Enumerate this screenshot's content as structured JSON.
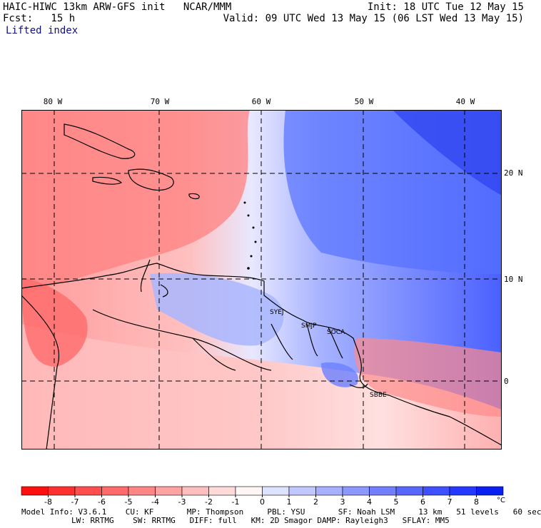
{
  "header": {
    "title": "HAIC-HIWC 13km ARW-GFS init   NCAR/MMM",
    "fcst": "Fcst:   15 h",
    "init": "Init: 18 UTC Tue 12 May 15",
    "valid": "Valid: 09 UTC Wed 13 May 15 (06 LST Wed 13 May 15)",
    "field": "Lifted index"
  },
  "map": {
    "lon_labels": [
      "80 W",
      "70 W",
      "60 W",
      "50 W",
      "40 W"
    ],
    "lat_labels": [
      "20 N",
      "10 N",
      "0"
    ],
    "station_labels": [
      "SYEJ",
      "SMJP",
      "SOCA",
      "SBBE"
    ],
    "station_color": "#d000d0"
  },
  "colorbar": {
    "tick_labels": [
      "-8",
      "-7",
      "-6",
      "-5",
      "-4",
      "-3",
      "-2",
      "-1",
      "0",
      "1",
      "2",
      "3",
      "4",
      "5",
      "6",
      "7",
      "8"
    ],
    "unit": "°C",
    "colors": [
      "#ff1010",
      "#ff3030",
      "#ff4e4e",
      "#ff6a6a",
      "#ff8686",
      "#ffa2a2",
      "#ffbebe",
      "#ffdada",
      "#fff6f6",
      "#dde2ff",
      "#c0c8ff",
      "#a6b0ff",
      "#8c98ff",
      "#7280ff",
      "#5868ff",
      "#3e50ff",
      "#2438ff",
      "#0a20f0"
    ]
  },
  "footer": {
    "line1": "Model Info: V3.6.1    CU: KF       MP: Thompson     PBL: YSU       SF: Noah LSM     13 km   51 levels   60 sec",
    "line2": "LW: RRTMG    SW: RRTMG   DIFF: full   KM: 2D Smagor DAMP: Rayleigh3   SFLAY: MM5"
  }
}
